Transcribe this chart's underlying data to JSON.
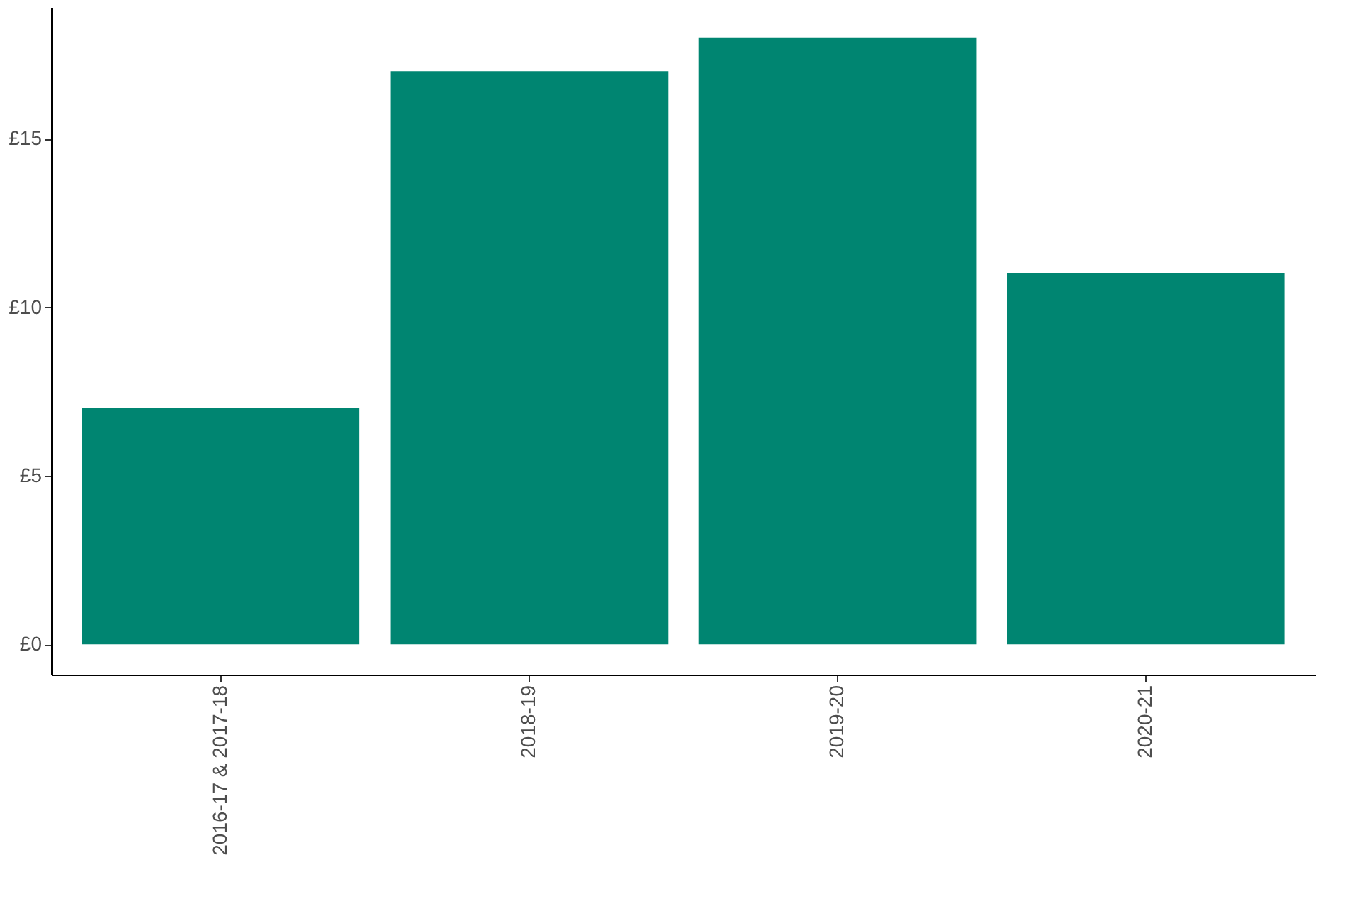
{
  "chart_data": {
    "type": "bar",
    "categories": [
      "2016-17 & 2017-18",
      "2018-19",
      "2019-20",
      "2020-21"
    ],
    "values": [
      7,
      17,
      18,
      11
    ],
    "color": "#008571",
    "ylim": [
      -0.9,
      18.9
    ],
    "yticks": [
      {
        "value": 0,
        "label": "£0"
      },
      {
        "value": 5,
        "label": "£5"
      },
      {
        "value": 10,
        "label": "£10"
      },
      {
        "value": 15,
        "label": "£15"
      }
    ],
    "grid": false
  }
}
